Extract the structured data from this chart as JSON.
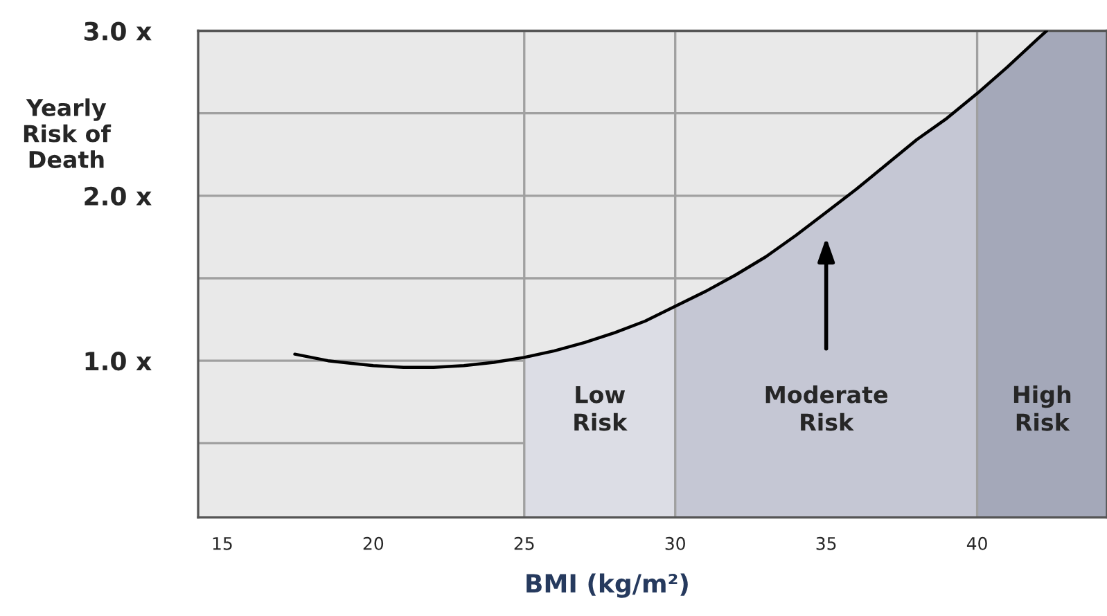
{
  "chart_data": {
    "type": "line",
    "xlabel": "BMI (kg/m²)",
    "ylabel": "Yearly\nRisk of\nDeath",
    "x": [
      17.4,
      18.5,
      20,
      21,
      22,
      23,
      24,
      25,
      26,
      27,
      28,
      29,
      30,
      31,
      32,
      33,
      34,
      35,
      36,
      37,
      38,
      39,
      40,
      41,
      42,
      42.3
    ],
    "series": [
      {
        "color": "#000000",
        "values": [
          1.04,
          1.0,
          0.97,
          0.96,
          0.96,
          0.97,
          0.99,
          1.02,
          1.06,
          1.11,
          1.17,
          1.24,
          1.33,
          1.42,
          1.52,
          1.63,
          1.76,
          1.9,
          2.04,
          2.19,
          2.34,
          2.47,
          2.62,
          2.78,
          2.95,
          3.0
        ]
      },
      {
        "type": "area",
        "color": "#dcdde5",
        "x": [
          25,
          26,
          27,
          28,
          29,
          30
        ],
        "values": [
          1.02,
          1.06,
          1.11,
          1.17,
          1.24,
          1.33
        ]
      },
      {
        "type": "area",
        "color": "#c5c7d4",
        "x": [
          30,
          31,
          32,
          33,
          34,
          35,
          36,
          37,
          38,
          39,
          40
        ],
        "values": [
          1.33,
          1.42,
          1.52,
          1.63,
          1.76,
          1.9,
          2.04,
          2.19,
          2.34,
          2.47,
          2.62
        ]
      },
      {
        "type": "area",
        "color": "#a4a8b9",
        "x": [
          40,
          41,
          42,
          42.3,
          44.3
        ],
        "values": [
          2.62,
          2.78,
          2.95,
          3.0,
          3.0
        ]
      }
    ],
    "xlim": [
      14.2,
      44.3
    ],
    "ylim": [
      0.05,
      3.0
    ],
    "xticks": [
      15,
      20,
      25,
      30,
      35,
      40
    ],
    "yticks": [
      {
        "value": 0.5,
        "label": null
      },
      {
        "value": 1.0,
        "label": "1.0 x"
      },
      {
        "value": 1.5,
        "label": null
      },
      {
        "value": 2.0,
        "label": "2.0 x"
      },
      {
        "value": 2.5,
        "label": null
      },
      {
        "value": 3.0,
        "label": "3.0 x"
      }
    ],
    "grid": "y",
    "marker": "none",
    "line_style": "solid",
    "ref_lines": [
      {
        "axis": "x",
        "value": 25,
        "color": "#a0a0a0"
      },
      {
        "axis": "x",
        "value": 30,
        "color": "#a0a0a0"
      },
      {
        "axis": "x",
        "value": 40,
        "color": "#a0a0a0"
      }
    ],
    "annotations": [
      "Low\nRisk",
      "Moderate\nRisk",
      "High\nRisk"
    ]
  }
}
